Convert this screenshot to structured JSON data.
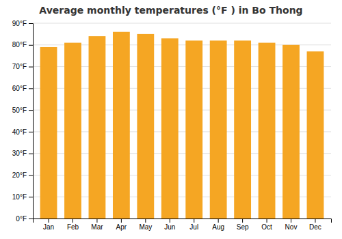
{
  "chart_data": {
    "type": "bar",
    "title": "Average monthly temperatures (°F ) in Bo Thong",
    "categories": [
      "Jan",
      "Feb",
      "Mar",
      "Apr",
      "May",
      "Jun",
      "Jul",
      "Aug",
      "Sep",
      "Oct",
      "Nov",
      "Dec"
    ],
    "values": [
      79,
      81,
      84,
      86,
      85,
      83,
      82,
      82,
      82,
      81,
      80,
      77
    ],
    "color": "#F5A623",
    "ylim": [
      0,
      90
    ],
    "yticks": [
      {
        "value": 0,
        "label": "0°F"
      },
      {
        "value": 10,
        "label": "10°F"
      },
      {
        "value": 20,
        "label": "20°F"
      },
      {
        "value": 30,
        "label": "30°F"
      },
      {
        "value": 40,
        "label": "40°F"
      },
      {
        "value": 50,
        "label": "50°F"
      },
      {
        "value": 60,
        "label": "60°F"
      },
      {
        "value": 70,
        "label": "70°F"
      },
      {
        "value": 80,
        "label": "80°F"
      },
      {
        "value": 90,
        "label": "90°F"
      }
    ],
    "grid": true
  }
}
